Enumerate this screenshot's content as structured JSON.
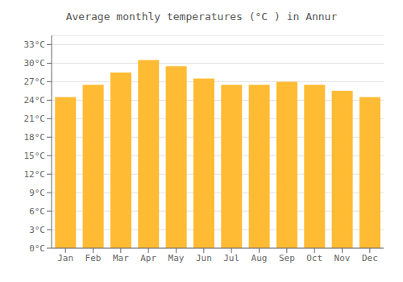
{
  "chart_data": {
    "type": "bar",
    "title": "Average monthly temperatures (°C ) in Annur",
    "categories": [
      "Jan",
      "Feb",
      "Mar",
      "Apr",
      "May",
      "Jun",
      "Jul",
      "Aug",
      "Sep",
      "Oct",
      "Nov",
      "Dec"
    ],
    "values": [
      24.5,
      26.5,
      28.5,
      30.5,
      29.5,
      27.5,
      26.5,
      26.5,
      27.0,
      26.5,
      25.5,
      24.5
    ],
    "color": "#FFBB33",
    "ylim": [
      0,
      34.5
    ],
    "yticks": [
      {
        "value": 0,
        "label": "0°C"
      },
      {
        "value": 3,
        "label": "3°C"
      },
      {
        "value": 6,
        "label": "6°C"
      },
      {
        "value": 9,
        "label": "9°C"
      },
      {
        "value": 12,
        "label": "12°C"
      },
      {
        "value": 15,
        "label": "15°C"
      },
      {
        "value": 18,
        "label": "18°C"
      },
      {
        "value": 21,
        "label": "21°C"
      },
      {
        "value": 24,
        "label": "24°C"
      },
      {
        "value": 27,
        "label": "27°C"
      },
      {
        "value": 30,
        "label": "30°C"
      },
      {
        "value": 33,
        "label": "33°C"
      }
    ],
    "grid": true
  }
}
